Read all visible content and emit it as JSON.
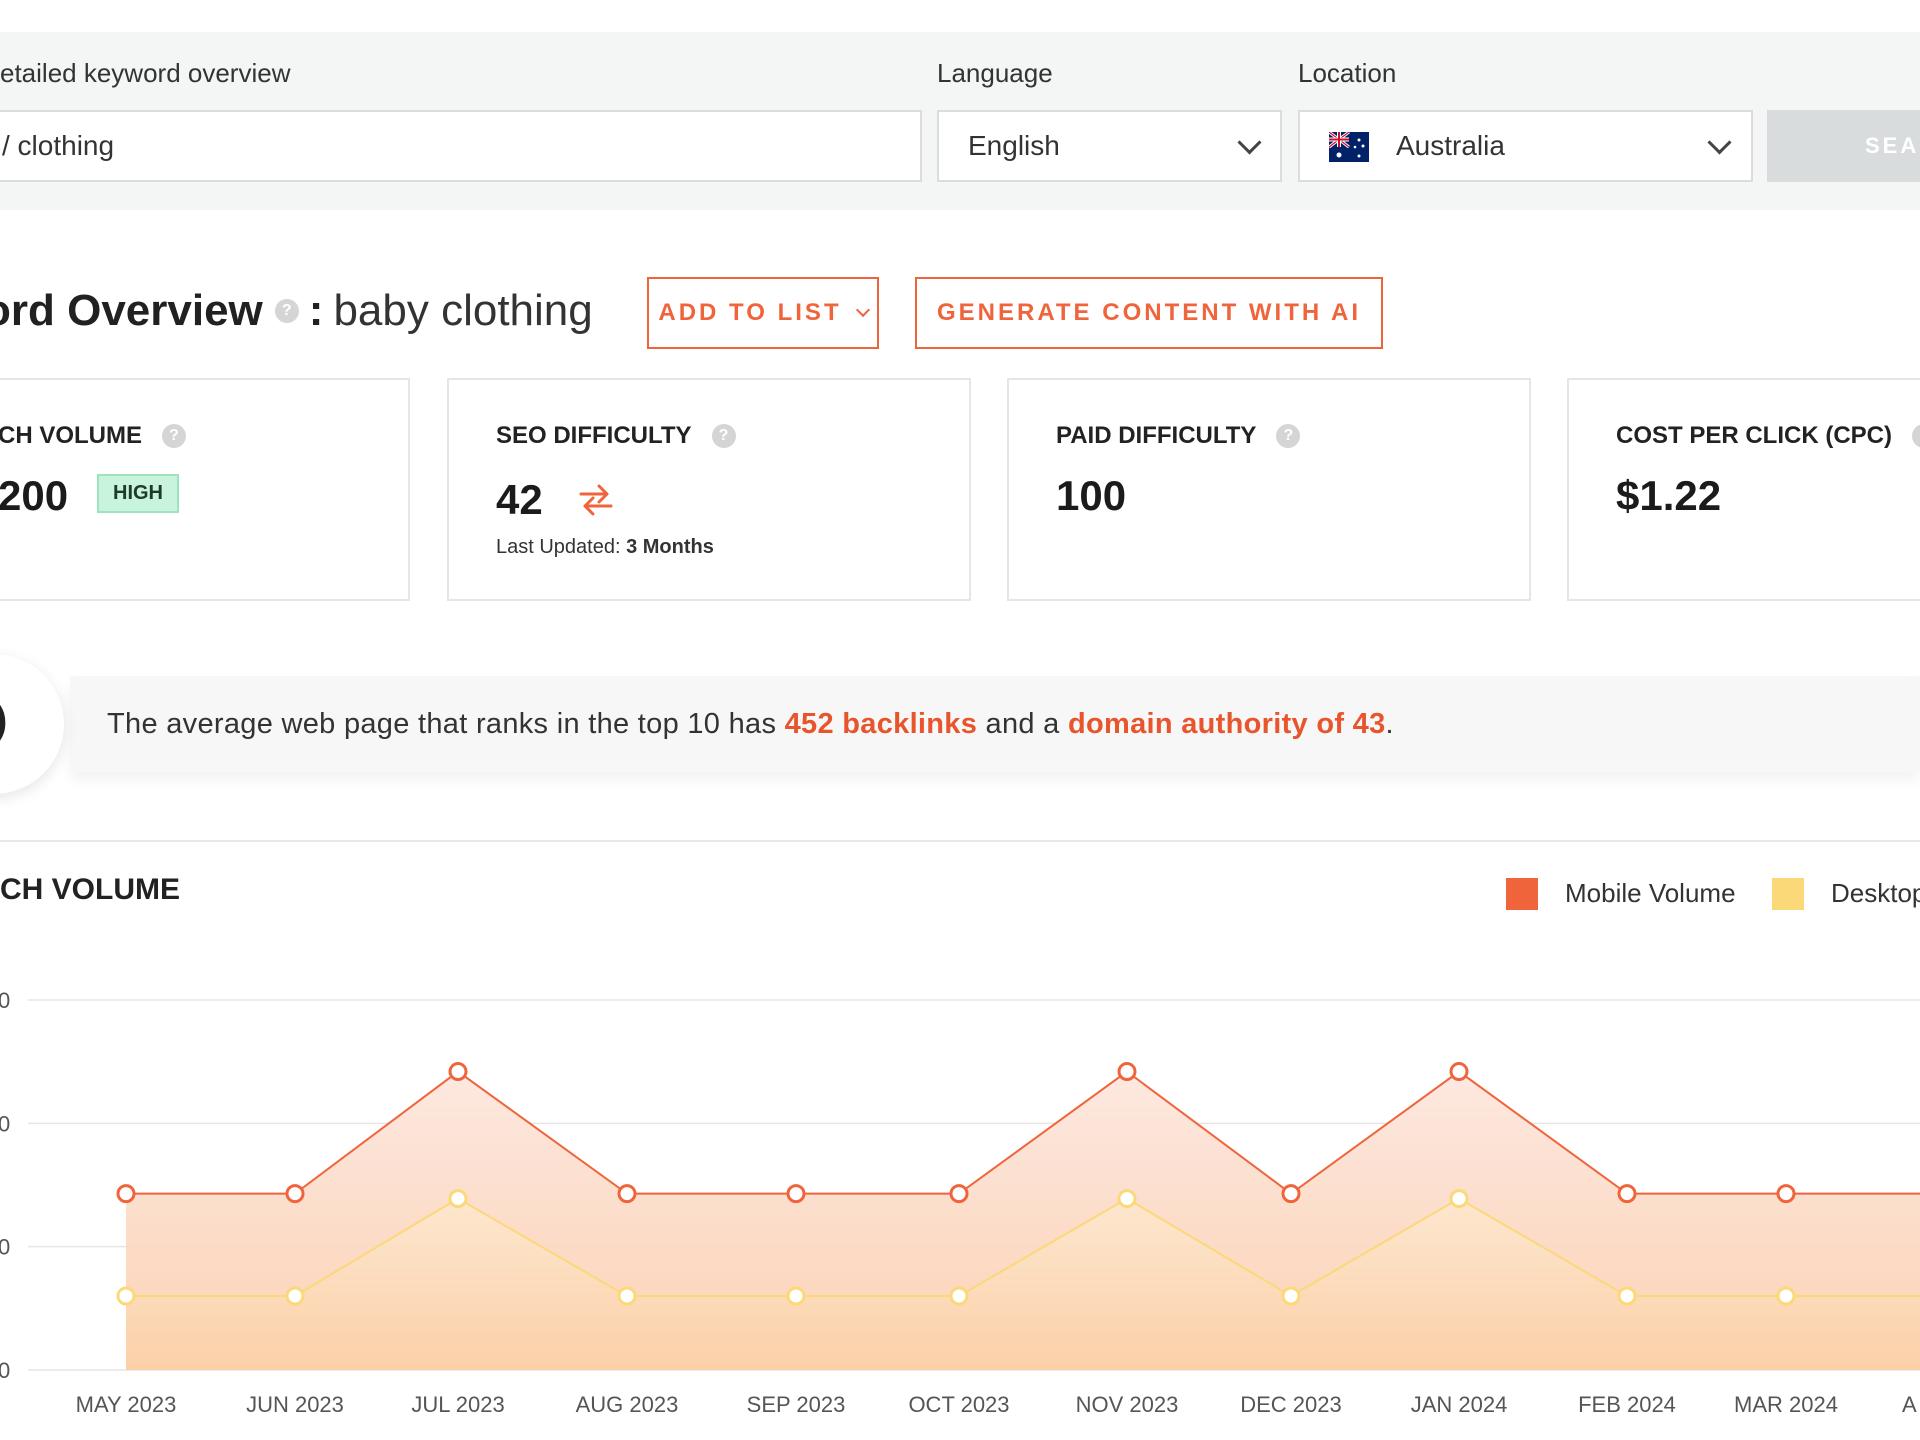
{
  "search": {
    "keyword_label": "etailed keyword overview",
    "keyword_value": "/ clothing",
    "language_label": "Language",
    "language_value": "English",
    "location_label": "Location",
    "location_value": "Australia",
    "search_button": "SEAR"
  },
  "overview": {
    "title_bold": "ord Overview",
    "separator": ":",
    "keyword": "baby clothing",
    "add_to_list": "ADD TO LIST",
    "generate": "GENERATE CONTENT WITH AI"
  },
  "metrics": {
    "search_volume": {
      "label": "CH VOLUME",
      "value": "200",
      "badge": "HIGH"
    },
    "seo_difficulty": {
      "label": "SEO DIFFICULTY",
      "value": "42",
      "updated_label": "Last Updated:",
      "updated_value": "3 Months"
    },
    "paid_difficulty": {
      "label": "PAID DIFFICULTY",
      "value": "100"
    },
    "cpc": {
      "label": "COST PER CLICK (CPC)",
      "value": "$1.22"
    }
  },
  "banner": {
    "prefix": "The average web page that ranks in the top 10 has",
    "backlinks": "452 backlinks",
    "middle": "and a",
    "authority": "domain authority of 43",
    "suffix": ".",
    "circle_text": ")"
  },
  "chart_section": {
    "title": "CH VOLUME",
    "legend": {
      "mobile": "Mobile Volume",
      "desktop": "Desktop"
    },
    "colors": {
      "mobile": "#f0643c",
      "desktop": "#fbd878",
      "accent": "#e8552d"
    }
  },
  "chart_data": {
    "type": "area",
    "categories": [
      "MAY 2023",
      "JUN 2023",
      "JUL 2023",
      "AUG 2023",
      "SEP 2023",
      "OCT 2023",
      "NOV 2023",
      "DEC 2023",
      "JAN 2024",
      "FEB 2024",
      "MAR 2024",
      "A"
    ],
    "y_tick_labels": [
      "0",
      "0",
      "0",
      "0"
    ],
    "series": [
      {
        "name": "Mobile Volume",
        "values": [
          1.43,
          1.43,
          2.42,
          1.43,
          1.43,
          1.43,
          2.42,
          1.43,
          2.42,
          1.43,
          1.43,
          1.43
        ]
      },
      {
        "name": "Desktop",
        "values": [
          0.6,
          0.6,
          1.39,
          0.6,
          0.6,
          0.6,
          1.39,
          0.6,
          1.39,
          0.6,
          0.6,
          0.6
        ]
      }
    ],
    "ylim": [
      0,
      3
    ],
    "grid": true,
    "legend_position": "top-right"
  }
}
